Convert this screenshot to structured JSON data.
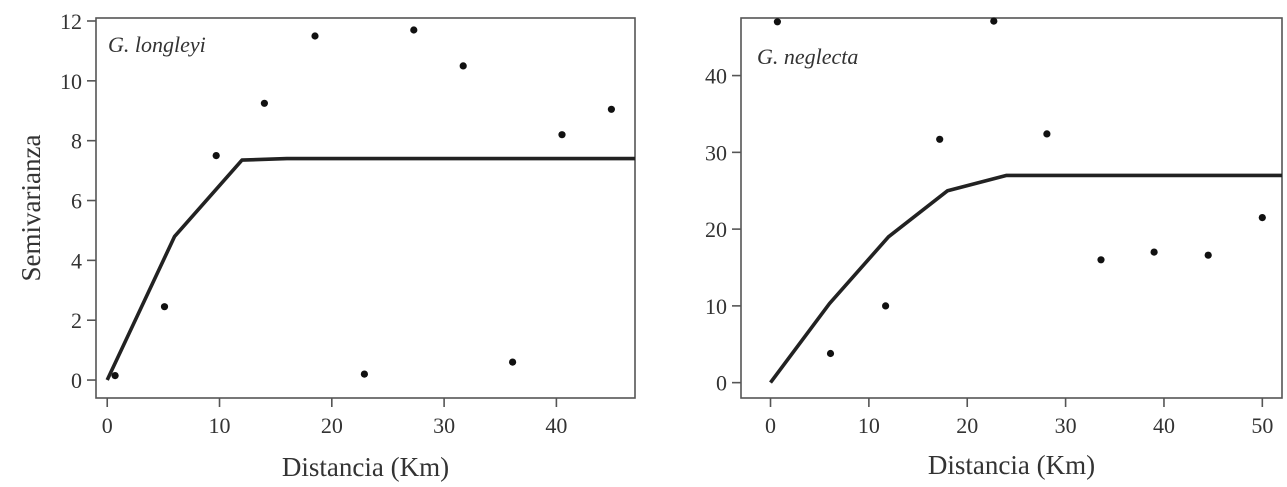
{
  "colors": {
    "line": "#222222",
    "points": "#111111",
    "frame": "#555555",
    "text": "#333333"
  },
  "chart_data": [
    {
      "type": "scatter",
      "title": "G. longleyi",
      "xlabel": "Distancia (Km)",
      "ylabel": "Semivarianza",
      "xlim": [
        -1,
        47
      ],
      "ylim": [
        -0.6,
        12.1
      ],
      "xticks": [
        0,
        10,
        20,
        30,
        40
      ],
      "yticks": [
        0,
        2,
        4,
        6,
        8,
        10,
        12
      ],
      "grid": false,
      "points": {
        "x": [
          0.7,
          5.1,
          9.7,
          14.0,
          18.5,
          22.9,
          27.3,
          31.7,
          36.1,
          40.5,
          44.9
        ],
        "y": [
          0.15,
          2.45,
          7.5,
          9.25,
          11.5,
          0.2,
          11.7,
          10.5,
          0.6,
          8.2,
          9.05
        ]
      },
      "fitted_line": {
        "x": [
          0,
          6,
          12,
          16,
          47
        ],
        "y": [
          0,
          4.8,
          7.35,
          7.4,
          7.4
        ]
      }
    },
    {
      "type": "scatter",
      "title": "G. neglecta",
      "xlabel": "Distancia (Km)",
      "ylabel": "",
      "xlim": [
        -3,
        52
      ],
      "ylim": [
        -2,
        47.5
      ],
      "xticks": [
        0,
        10,
        20,
        30,
        40,
        50
      ],
      "yticks": [
        0,
        10,
        20,
        30,
        40
      ],
      "grid": false,
      "points": {
        "x": [
          0.7,
          6.1,
          11.7,
          17.2,
          22.7,
          28.1,
          33.6,
          39.0,
          44.5,
          50.0
        ],
        "y": [
          47.0,
          3.8,
          10.0,
          31.7,
          47.1,
          32.4,
          16.0,
          17.0,
          16.6,
          21.5
        ]
      },
      "fitted_line": {
        "x": [
          0,
          6,
          12,
          18,
          24,
          52
        ],
        "y": [
          0,
          10.3,
          19.0,
          25.0,
          27.0,
          27.0
        ]
      }
    }
  ]
}
